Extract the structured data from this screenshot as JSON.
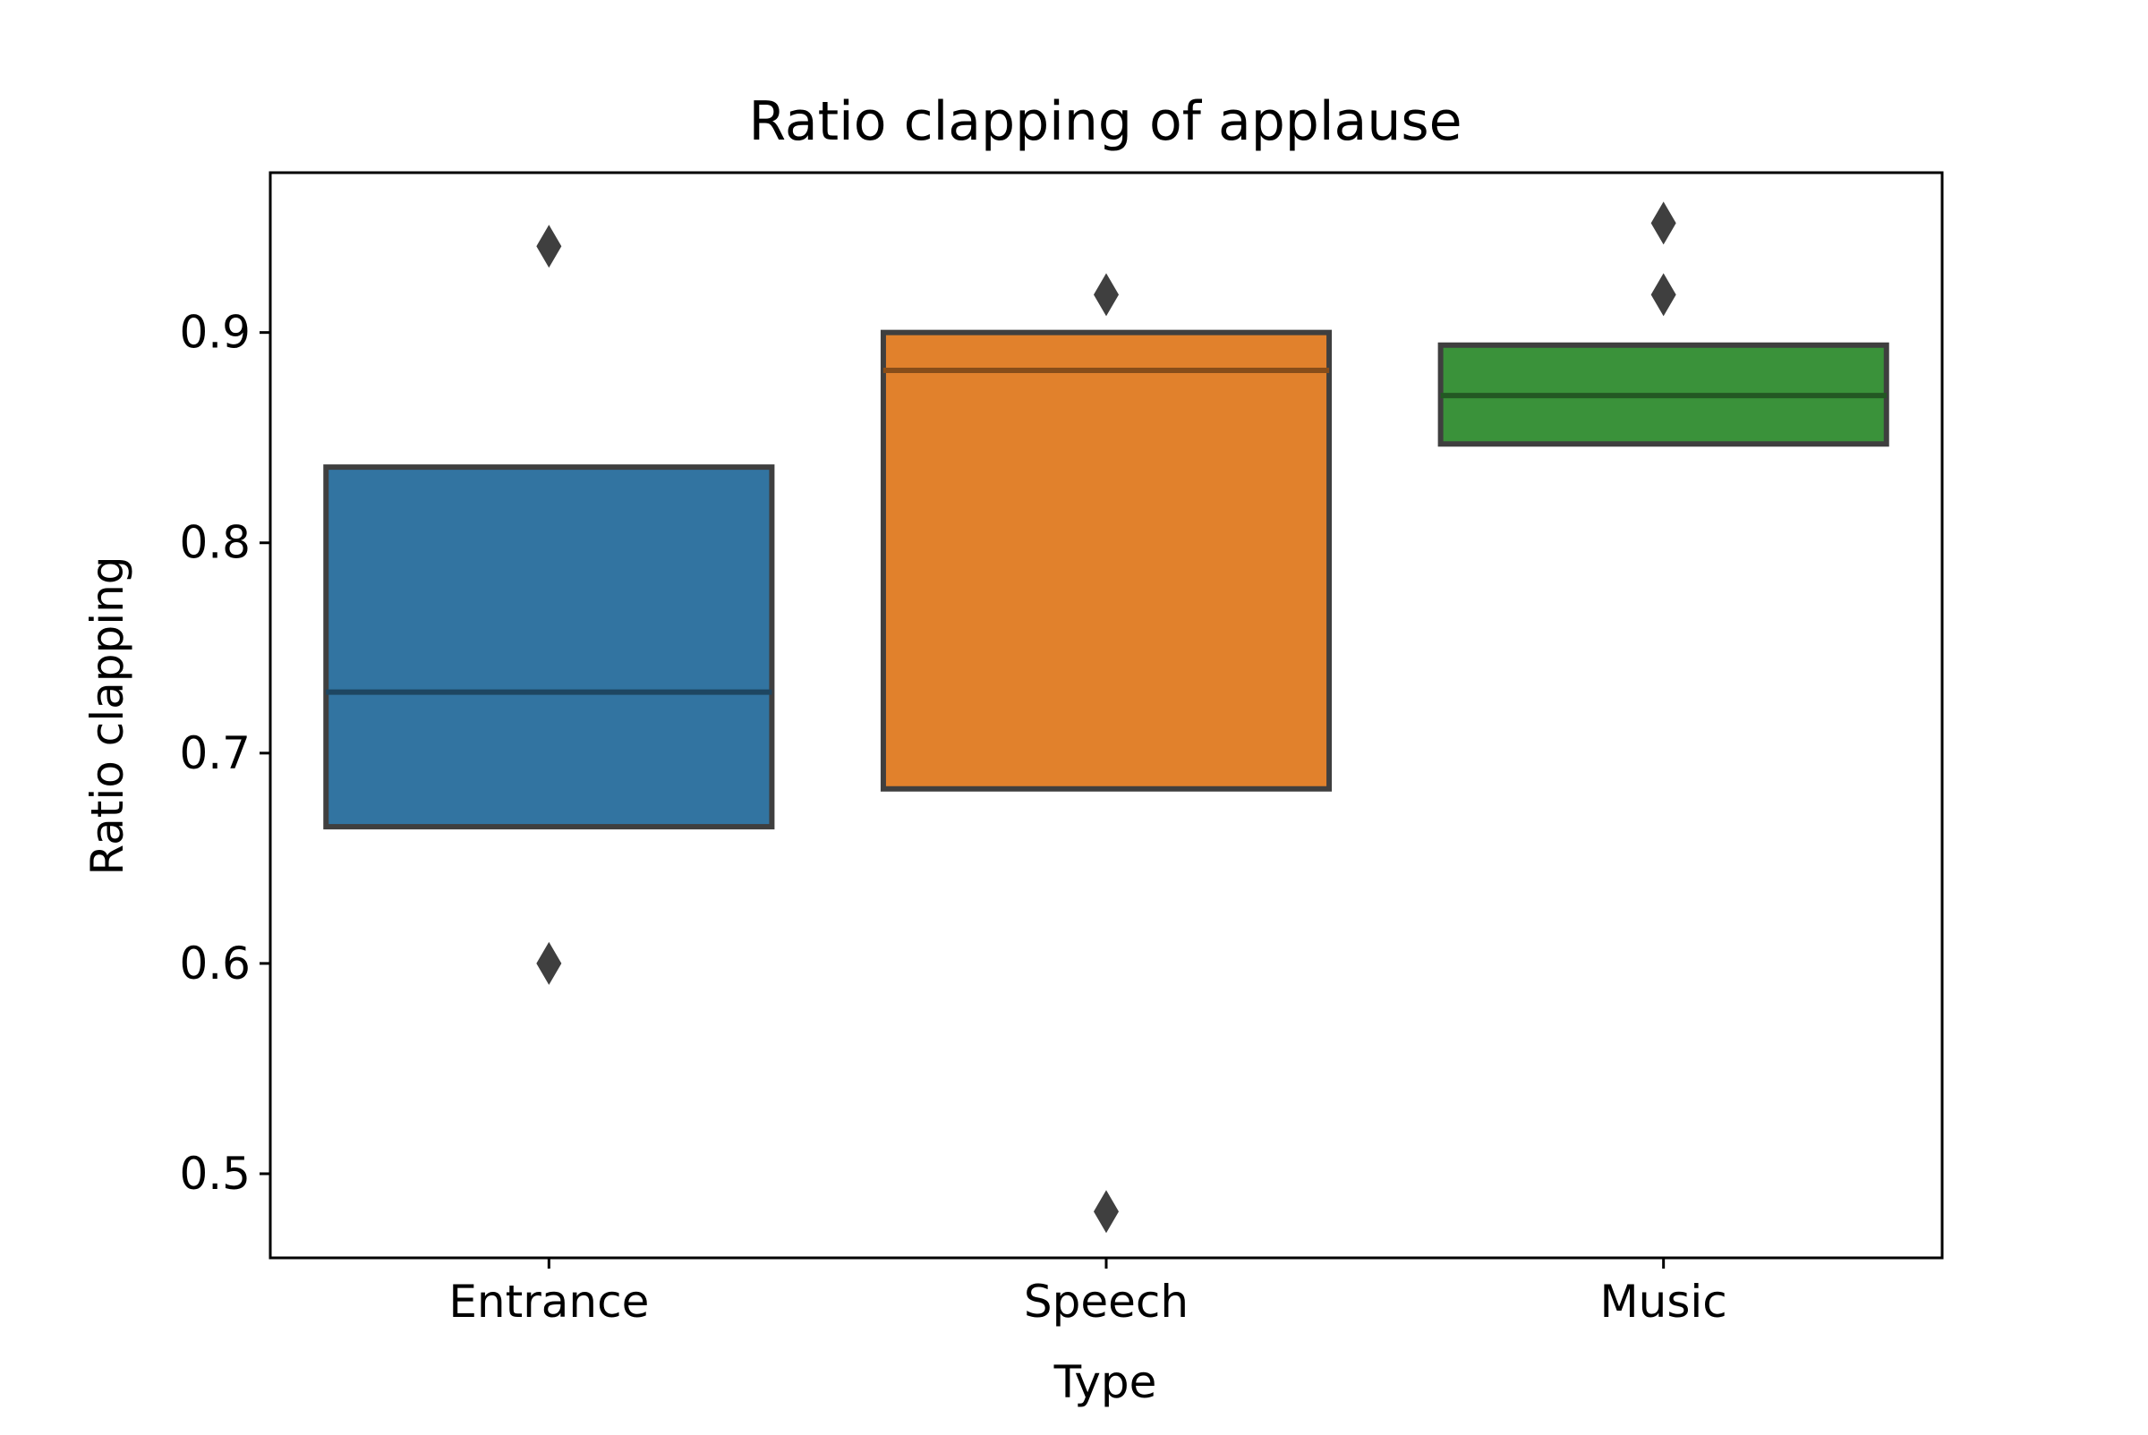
{
  "chart_data": {
    "type": "boxplot",
    "title": "Ratio clapping of applause",
    "xlabel": "Type",
    "ylabel": "Ratio clapping",
    "categories": [
      "Entrance",
      "Speech",
      "Music"
    ],
    "ylim": [
      0.46,
      0.976
    ],
    "yticks": [
      0.5,
      0.6,
      0.7,
      0.8,
      0.9
    ],
    "ytick_labels": [
      "0.5",
      "0.6",
      "0.7",
      "0.8",
      "0.9"
    ],
    "grid": false,
    "legend": "none",
    "boxes": [
      {
        "category": "Entrance",
        "q1": 0.665,
        "median": 0.729,
        "q3": 0.836,
        "outliers": [
          0.941,
          0.6
        ],
        "color": "#3274a1"
      },
      {
        "category": "Speech",
        "q1": 0.683,
        "median": 0.882,
        "q3": 0.9,
        "outliers": [
          0.918,
          0.482
        ],
        "color": "#e1812c"
      },
      {
        "category": "Music",
        "q1": 0.847,
        "median": 0.87,
        "q3": 0.894,
        "outliers": [
          0.952,
          0.918
        ],
        "color": "#3a923a"
      }
    ],
    "edge_color": "#3f3f3f"
  }
}
